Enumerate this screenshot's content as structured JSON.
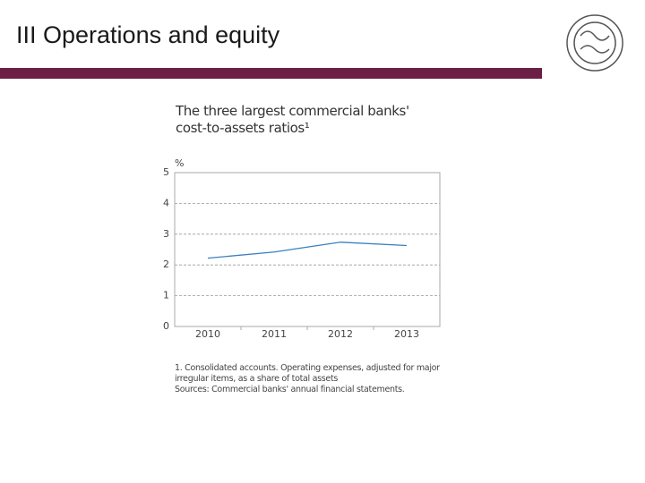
{
  "slide_title": "III Operations and equity",
  "chart_data": {
    "type": "line",
    "title": "The three largest commercial banks' cost-to-assets ratios¹",
    "y_unit": "%",
    "categories": [
      "2010",
      "2011",
      "2012",
      "2013"
    ],
    "series": [
      {
        "name": "Cost-to-assets ratio",
        "color": "#3b7fc0",
        "values": [
          2.22,
          2.42,
          2.74,
          2.63
        ]
      }
    ],
    "ylim": [
      0,
      5
    ],
    "yticks": [
      0,
      1,
      2,
      3,
      4,
      5
    ],
    "grid": true,
    "notes": [
      "1. Consolidated accounts. Operating expenses, adjusted for major irregular items, as a share of total assets",
      "Sources: Commercial banks' annual financial statements."
    ]
  }
}
